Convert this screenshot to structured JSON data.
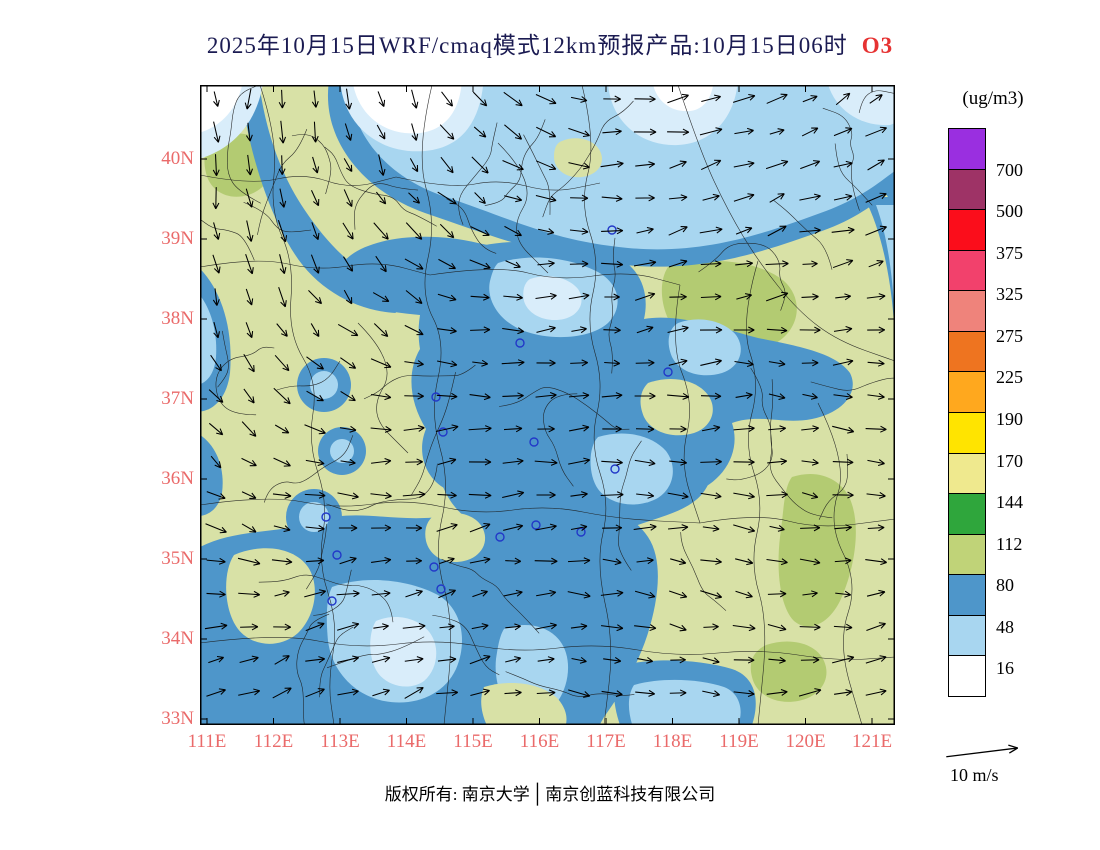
{
  "title": {
    "text": "2025年10月15日WRF/cmaq模式12km预报产品:10月15日06时",
    "species": "O3",
    "text_color": "#1b1b52",
    "species_color": "#e63232"
  },
  "axes": {
    "y_ticks": [
      "40N",
      "39N",
      "38N",
      "37N",
      "36N",
      "35N",
      "34N",
      "33N"
    ],
    "x_ticks": [
      "111E",
      "112E",
      "113E",
      "114E",
      "115E",
      "116E",
      "117E",
      "118E",
      "119E",
      "120E",
      "121E"
    ],
    "tick_color": "#ea6a6a"
  },
  "legend": {
    "unit": "(ug/m3)",
    "levels": [
      "700",
      "500",
      "375",
      "325",
      "275",
      "225",
      "190",
      "170",
      "144",
      "112",
      "80",
      "48",
      "16"
    ],
    "colors": [
      "#9a2fe0",
      "#9e3366",
      "#fb0d1b",
      "#f2416c",
      "#ef837b",
      "#ee7420",
      "#ffa81e",
      "#ffe400",
      "#efe98e",
      "#2fa63c",
      "#c0d378",
      "#4e96ca",
      "#a8d6f0",
      "#ffffff"
    ]
  },
  "wind_scale": {
    "label": "10 m/s"
  },
  "footer": {
    "left": "版权所有: 南京大学",
    "separator": "│",
    "right": "南京创蓝科技有限公司"
  },
  "map_colors": {
    "background": "#d8e1a6",
    "green_patch": "#b3cb72",
    "blue_medium": "#4e96ca",
    "blue_light": "#a8d6f0",
    "blue_pale": "#d9edfa",
    "white_core": "#ffffff",
    "boundary": "#1b1b1b",
    "city_marker": "#2238c8",
    "frame": "#000000"
  }
}
